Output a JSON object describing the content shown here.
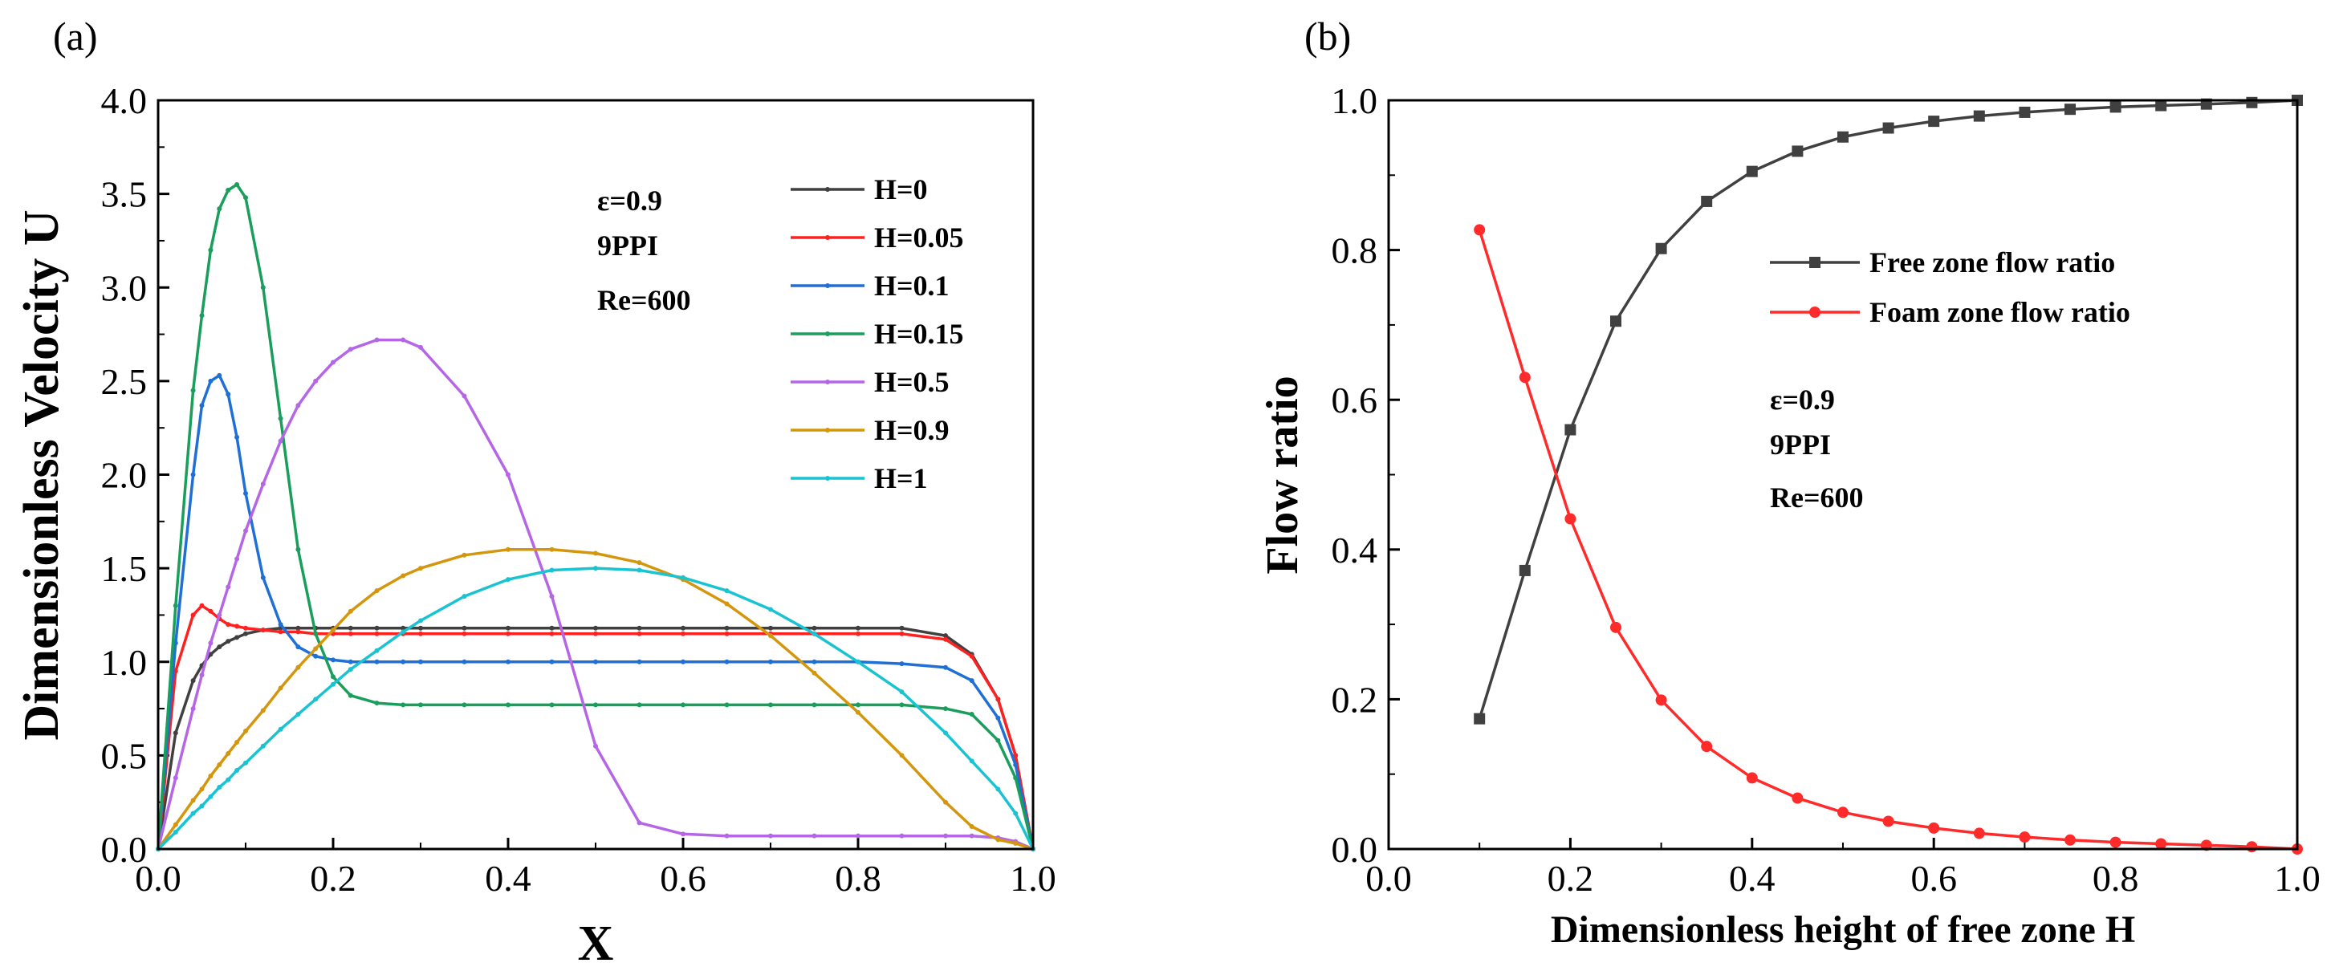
{
  "chart_data": [
    {
      "type": "line",
      "panel_label": "(a)",
      "title": "",
      "xlabel": "X",
      "ylabel": "Dimensionless Velocity U",
      "xlim": [
        0.0,
        1.0
      ],
      "ylim": [
        0.0,
        4.0
      ],
      "x_ticks": [
        "0.0",
        "0.2",
        "0.4",
        "0.6",
        "0.8",
        "1.0"
      ],
      "y_ticks": [
        "0.0",
        "0.5",
        "1.0",
        "1.5",
        "2.0",
        "2.5",
        "3.0",
        "3.5",
        "4.0"
      ],
      "legend_position": "top-right",
      "params": [
        "ε=0.9",
        "9PPI",
        "Re=600"
      ],
      "x": [
        0.0,
        0.02,
        0.04,
        0.05,
        0.06,
        0.07,
        0.08,
        0.09,
        0.1,
        0.12,
        0.14,
        0.16,
        0.18,
        0.2,
        0.22,
        0.25,
        0.28,
        0.3,
        0.35,
        0.4,
        0.45,
        0.5,
        0.55,
        0.6,
        0.65,
        0.7,
        0.75,
        0.8,
        0.85,
        0.9,
        0.93,
        0.96,
        0.98,
        1.0
      ],
      "series": [
        {
          "name": "H=0",
          "color": "#404040",
          "values": [
            0.0,
            0.62,
            0.9,
            0.98,
            1.04,
            1.08,
            1.11,
            1.13,
            1.15,
            1.17,
            1.18,
            1.18,
            1.18,
            1.18,
            1.18,
            1.18,
            1.18,
            1.18,
            1.18,
            1.18,
            1.18,
            1.18,
            1.18,
            1.18,
            1.18,
            1.18,
            1.18,
            1.18,
            1.18,
            1.14,
            1.04,
            0.8,
            0.5,
            0.0
          ]
        },
        {
          "name": "H=0.05",
          "color": "#ff2020",
          "values": [
            0.0,
            0.95,
            1.25,
            1.3,
            1.27,
            1.23,
            1.2,
            1.19,
            1.18,
            1.17,
            1.16,
            1.16,
            1.15,
            1.15,
            1.15,
            1.15,
            1.15,
            1.15,
            1.15,
            1.15,
            1.15,
            1.15,
            1.15,
            1.15,
            1.15,
            1.15,
            1.15,
            1.15,
            1.15,
            1.12,
            1.03,
            0.8,
            0.5,
            0.0
          ]
        },
        {
          "name": "H=0.1",
          "color": "#1f6fd6",
          "values": [
            0.0,
            1.1,
            2.0,
            2.37,
            2.5,
            2.53,
            2.43,
            2.2,
            1.9,
            1.45,
            1.2,
            1.08,
            1.03,
            1.01,
            1.0,
            1.0,
            1.0,
            1.0,
            1.0,
            1.0,
            1.0,
            1.0,
            1.0,
            1.0,
            1.0,
            1.0,
            1.0,
            1.0,
            0.99,
            0.97,
            0.9,
            0.7,
            0.45,
            0.0
          ]
        },
        {
          "name": "H=0.15",
          "color": "#1a9e5c",
          "values": [
            0.0,
            1.3,
            2.45,
            2.85,
            3.2,
            3.42,
            3.52,
            3.55,
            3.48,
            3.0,
            2.3,
            1.6,
            1.15,
            0.92,
            0.82,
            0.78,
            0.77,
            0.77,
            0.77,
            0.77,
            0.77,
            0.77,
            0.77,
            0.77,
            0.77,
            0.77,
            0.77,
            0.77,
            0.77,
            0.75,
            0.72,
            0.58,
            0.38,
            0.0
          ]
        },
        {
          "name": "H=0.5",
          "color": "#b566e6",
          "values": [
            0.0,
            0.38,
            0.75,
            0.93,
            1.1,
            1.25,
            1.4,
            1.55,
            1.7,
            1.95,
            2.18,
            2.37,
            2.5,
            2.6,
            2.67,
            2.72,
            2.72,
            2.68,
            2.42,
            2.0,
            1.35,
            0.55,
            0.14,
            0.08,
            0.07,
            0.07,
            0.07,
            0.07,
            0.07,
            0.07,
            0.07,
            0.06,
            0.04,
            0.0
          ]
        },
        {
          "name": "H=0.9",
          "color": "#d4960c",
          "values": [
            0.0,
            0.13,
            0.26,
            0.32,
            0.39,
            0.45,
            0.51,
            0.57,
            0.63,
            0.74,
            0.86,
            0.97,
            1.07,
            1.17,
            1.27,
            1.38,
            1.46,
            1.5,
            1.57,
            1.6,
            1.6,
            1.58,
            1.53,
            1.44,
            1.31,
            1.14,
            0.94,
            0.73,
            0.5,
            0.25,
            0.12,
            0.05,
            0.03,
            0.0
          ]
        },
        {
          "name": "H=1",
          "color": "#19c3d1",
          "values": [
            0.0,
            0.09,
            0.19,
            0.23,
            0.28,
            0.33,
            0.37,
            0.42,
            0.46,
            0.55,
            0.64,
            0.72,
            0.8,
            0.88,
            0.96,
            1.06,
            1.16,
            1.22,
            1.35,
            1.44,
            1.49,
            1.5,
            1.49,
            1.45,
            1.38,
            1.28,
            1.15,
            1.0,
            0.84,
            0.62,
            0.47,
            0.32,
            0.19,
            0.0
          ]
        }
      ]
    },
    {
      "type": "line",
      "panel_label": "(b)",
      "title": "",
      "xlabel": "Dimensionless height of free zone  H",
      "ylabel": "Flow ratio",
      "xlim": [
        0.0,
        1.0
      ],
      "ylim": [
        0.0,
        1.0
      ],
      "x_ticks": [
        "0.0",
        "0.2",
        "0.4",
        "0.6",
        "0.8",
        "1.0"
      ],
      "y_ticks": [
        "0.0",
        "0.2",
        "0.4",
        "0.6",
        "0.8",
        "1.0"
      ],
      "legend_position": "top-right",
      "params": [
        "ε=0.9",
        "9PPI",
        "Re=600"
      ],
      "x": [
        0.1,
        0.15,
        0.2,
        0.25,
        0.3,
        0.35,
        0.4,
        0.45,
        0.5,
        0.55,
        0.6,
        0.65,
        0.7,
        0.75,
        0.8,
        0.85,
        0.9,
        0.95,
        1.0
      ],
      "series": [
        {
          "name": "Free  zone flow ratio",
          "color": "#404040",
          "marker": "square",
          "values": [
            0.174,
            0.372,
            0.56,
            0.705,
            0.802,
            0.865,
            0.905,
            0.932,
            0.951,
            0.963,
            0.972,
            0.979,
            0.984,
            0.988,
            0.991,
            0.993,
            0.995,
            0.997,
            1.0
          ]
        },
        {
          "name": "Foam zone flow ratio",
          "color": "#ff2a2a",
          "marker": "circle",
          "values": [
            0.827,
            0.63,
            0.441,
            0.296,
            0.199,
            0.137,
            0.095,
            0.068,
            0.049,
            0.037,
            0.028,
            0.021,
            0.016,
            0.012,
            0.009,
            0.007,
            0.005,
            0.003,
            0.0
          ]
        }
      ]
    }
  ]
}
